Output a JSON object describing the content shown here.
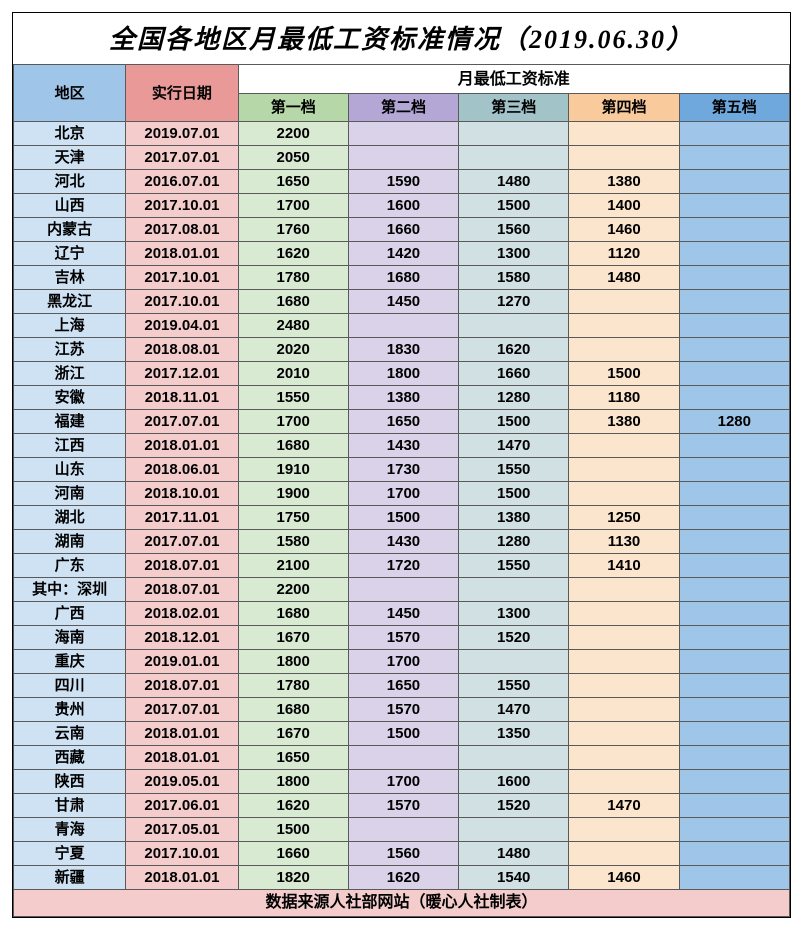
{
  "title": "全国各地区月最低工资标准情况（2019.06.30）",
  "headers": {
    "region": "地区",
    "date": "实行日期",
    "group": "月最低工资标准",
    "tiers": [
      "第一档",
      "第二档",
      "第三档",
      "第四档",
      "第五档"
    ]
  },
  "colors": {
    "h_region": "#9fc5e8",
    "h_date": "#ea9999",
    "h_t1": "#b6d7a8",
    "h_t2": "#b4a7d6",
    "h_t3": "#a2c4c9",
    "h_t4": "#f9cb9c",
    "h_t5": "#6fa8dc",
    "c_region": "#cfe2f3",
    "c_date": "#f4cccc",
    "c_t1": "#d9ead3",
    "c_t2": "#d9d2e9",
    "c_t3": "#d0e0e3",
    "c_t4": "#fce5cd",
    "c_t5": "#9fc5e8",
    "footer_bg": "#f4cccc",
    "border": "#5a5a5a"
  },
  "rows": [
    {
      "region": "北京",
      "date": "2019.07.01",
      "t": [
        "2200",
        "",
        "",
        "",
        ""
      ]
    },
    {
      "region": "天津",
      "date": "2017.07.01",
      "t": [
        "2050",
        "",
        "",
        "",
        ""
      ]
    },
    {
      "region": "河北",
      "date": "2016.07.01",
      "t": [
        "1650",
        "1590",
        "1480",
        "1380",
        ""
      ]
    },
    {
      "region": "山西",
      "date": "2017.10.01",
      "t": [
        "1700",
        "1600",
        "1500",
        "1400",
        ""
      ]
    },
    {
      "region": "内蒙古",
      "date": "2017.08.01",
      "t": [
        "1760",
        "1660",
        "1560",
        "1460",
        ""
      ]
    },
    {
      "region": "辽宁",
      "date": "2018.01.01",
      "t": [
        "1620",
        "1420",
        "1300",
        "1120",
        ""
      ]
    },
    {
      "region": "吉林",
      "date": "2017.10.01",
      "t": [
        "1780",
        "1680",
        "1580",
        "1480",
        ""
      ]
    },
    {
      "region": "黑龙江",
      "date": "2017.10.01",
      "t": [
        "1680",
        "1450",
        "1270",
        "",
        ""
      ]
    },
    {
      "region": "上海",
      "date": "2019.04.01",
      "t": [
        "2480",
        "",
        "",
        "",
        ""
      ]
    },
    {
      "region": "江苏",
      "date": "2018.08.01",
      "t": [
        "2020",
        "1830",
        "1620",
        "",
        ""
      ]
    },
    {
      "region": "浙江",
      "date": "2017.12.01",
      "t": [
        "2010",
        "1800",
        "1660",
        "1500",
        ""
      ]
    },
    {
      "region": "安徽",
      "date": "2018.11.01",
      "t": [
        "1550",
        "1380",
        "1280",
        "1180",
        ""
      ]
    },
    {
      "region": "福建",
      "date": "2017.07.01",
      "t": [
        "1700",
        "1650",
        "1500",
        "1380",
        "1280"
      ]
    },
    {
      "region": "江西",
      "date": "2018.01.01",
      "t": [
        "1680",
        "1430",
        "1470",
        "",
        ""
      ]
    },
    {
      "region": "山东",
      "date": "2018.06.01",
      "t": [
        "1910",
        "1730",
        "1550",
        "",
        ""
      ]
    },
    {
      "region": "河南",
      "date": "2018.10.01",
      "t": [
        "1900",
        "1700",
        "1500",
        "",
        ""
      ]
    },
    {
      "region": "湖北",
      "date": "2017.11.01",
      "t": [
        "1750",
        "1500",
        "1380",
        "1250",
        ""
      ]
    },
    {
      "region": "湖南",
      "date": "2017.07.01",
      "t": [
        "1580",
        "1430",
        "1280",
        "1130",
        ""
      ]
    },
    {
      "region": "广东",
      "date": "2018.07.01",
      "t": [
        "2100",
        "1720",
        "1550",
        "1410",
        ""
      ]
    },
    {
      "region": "其中：深圳",
      "date": "2018.07.01",
      "t": [
        "2200",
        "",
        "",
        "",
        ""
      ]
    },
    {
      "region": "广西",
      "date": "2018.02.01",
      "t": [
        "1680",
        "1450",
        "1300",
        "",
        ""
      ]
    },
    {
      "region": "海南",
      "date": "2018.12.01",
      "t": [
        "1670",
        "1570",
        "1520",
        "",
        ""
      ]
    },
    {
      "region": "重庆",
      "date": "2019.01.01",
      "t": [
        "1800",
        "1700",
        "",
        "",
        ""
      ]
    },
    {
      "region": "四川",
      "date": "2018.07.01",
      "t": [
        "1780",
        "1650",
        "1550",
        "",
        ""
      ]
    },
    {
      "region": "贵州",
      "date": "2017.07.01",
      "t": [
        "1680",
        "1570",
        "1470",
        "",
        ""
      ]
    },
    {
      "region": "云南",
      "date": "2018.01.01",
      "t": [
        "1670",
        "1500",
        "1350",
        "",
        ""
      ]
    },
    {
      "region": "西藏",
      "date": "2018.01.01",
      "t": [
        "1650",
        "",
        "",
        "",
        ""
      ]
    },
    {
      "region": "陕西",
      "date": "2019.05.01",
      "t": [
        "1800",
        "1700",
        "1600",
        "",
        ""
      ]
    },
    {
      "region": "甘肃",
      "date": "2017.06.01",
      "t": [
        "1620",
        "1570",
        "1520",
        "1470",
        ""
      ]
    },
    {
      "region": "青海",
      "date": "2017.05.01",
      "t": [
        "1500",
        "",
        "",
        "",
        ""
      ]
    },
    {
      "region": "宁夏",
      "date": "2017.10.01",
      "t": [
        "1660",
        "1560",
        "1480",
        "",
        ""
      ]
    },
    {
      "region": "新疆",
      "date": "2018.01.01",
      "t": [
        "1820",
        "1620",
        "1540",
        "1460",
        ""
      ]
    }
  ],
  "footer": "数据来源人社部网站（暖心人社制表）"
}
